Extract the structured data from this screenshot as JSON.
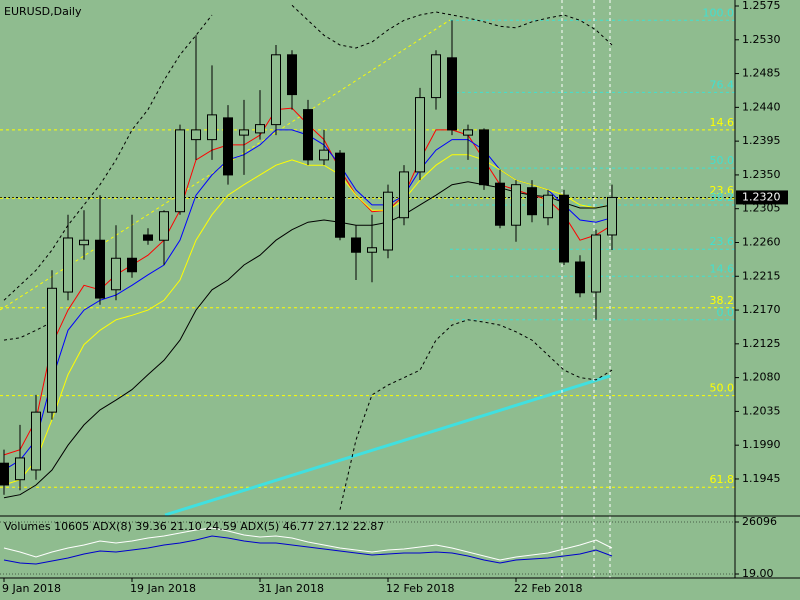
{
  "chart_data": {
    "type": "candlestick",
    "title": "EURUSD,Daily",
    "categories": [
      "9 Jan 2018",
      null,
      null,
      null,
      null,
      null,
      null,
      null,
      "19 Jan 2018",
      null,
      null,
      null,
      null,
      null,
      null,
      null,
      "31 Jan 2018",
      null,
      null,
      null,
      null,
      null,
      null,
      null,
      "12 Feb 2018",
      null,
      null,
      null,
      null,
      null,
      null,
      null,
      "22 Feb 2018",
      null,
      null,
      null,
      null,
      null,
      null
    ],
    "ohlc": {
      "open": [
        1.1966,
        1.1944,
        1.1957,
        1.2034,
        1.2194,
        1.2257,
        1.2263,
        1.2197,
        1.2239,
        1.227,
        1.2263,
        1.2301,
        1.2397,
        1.2397,
        1.2426,
        1.2403,
        1.2406,
        1.2417,
        1.251,
        1.2437,
        1.237,
        1.2379,
        1.2266,
        1.2247,
        1.225,
        1.2293,
        1.2354,
        1.2453,
        1.2506,
        1.2403,
        1.241,
        1.2339,
        1.2283,
        1.2333,
        1.2293,
        1.2323,
        1.2234,
        1.2194,
        1.227
      ],
      "high": [
        1.1984,
        1.2017,
        1.2057,
        1.2223,
        1.2297,
        1.2303,
        1.2323,
        1.2283,
        1.2297,
        1.2279,
        1.2303,
        1.2417,
        1.2536,
        1.2496,
        1.2443,
        1.245,
        1.2463,
        1.2523,
        1.2516,
        1.245,
        1.241,
        1.2383,
        1.2283,
        1.2297,
        1.2337,
        1.2363,
        1.2466,
        1.2516,
        1.2556,
        1.2417,
        1.2412,
        1.2357,
        1.2343,
        1.2343,
        1.233,
        1.233,
        1.2243,
        1.2277,
        1.2337
      ],
      "low": [
        1.1924,
        1.193,
        1.1944,
        1.2024,
        1.2183,
        1.2237,
        1.2177,
        1.2183,
        1.2213,
        1.2257,
        1.223,
        1.2297,
        1.237,
        1.237,
        1.2337,
        1.235,
        1.2397,
        1.2403,
        1.2437,
        1.2363,
        1.2363,
        1.2263,
        1.221,
        1.2207,
        1.2239,
        1.2283,
        1.2343,
        1.2437,
        1.2403,
        1.237,
        1.233,
        1.2279,
        1.2261,
        1.2287,
        1.2283,
        1.223,
        1.2187,
        1.2157,
        1.225
      ],
      "close": [
        1.1937,
        1.1973,
        1.2034,
        1.2199,
        1.2266,
        1.2263,
        1.2186,
        1.2239,
        1.2221,
        1.2263,
        1.2301,
        1.241,
        1.241,
        1.243,
        1.235,
        1.241,
        1.2417,
        1.251,
        1.2457,
        1.237,
        1.2383,
        1.2267,
        1.2247,
        1.2253,
        1.2327,
        1.2354,
        1.2453,
        1.251,
        1.241,
        1.241,
        1.2337,
        1.2283,
        1.2337,
        1.2297,
        1.2323,
        1.2234,
        1.2193,
        1.227,
        1.232
      ]
    },
    "bull_color": "#8fbc8f",
    "bear_color": "#000000",
    "series": [
      {
        "color": "#ff0000",
        "style": "solid",
        "values": [
          1.1977,
          1.1984,
          1.2024,
          1.2124,
          1.217,
          1.2203,
          1.2197,
          1.2217,
          1.223,
          1.2243,
          1.2263,
          1.2303,
          1.237,
          1.2383,
          1.239,
          1.239,
          1.2403,
          1.2437,
          1.2439,
          1.2417,
          1.2397,
          1.2357,
          1.2323,
          1.2301,
          1.2303,
          1.2323,
          1.237,
          1.241,
          1.241,
          1.2403,
          1.237,
          1.2337,
          1.233,
          1.2323,
          1.2317,
          1.2297,
          1.2263,
          1.227,
          1.2283
        ]
      },
      {
        "color": "#0000ff",
        "style": "solid",
        "values": [
          1.1957,
          1.197,
          1.1997,
          1.2077,
          1.2143,
          1.217,
          1.2183,
          1.219,
          1.2203,
          1.2217,
          1.223,
          1.2263,
          1.2323,
          1.235,
          1.237,
          1.2377,
          1.239,
          1.241,
          1.241,
          1.2403,
          1.239,
          1.2363,
          1.233,
          1.231,
          1.231,
          1.2323,
          1.2357,
          1.2383,
          1.2397,
          1.2397,
          1.2383,
          1.2357,
          1.2343,
          1.2337,
          1.233,
          1.231,
          1.229,
          1.2287,
          1.2293
        ]
      },
      {
        "color": "#ffff00",
        "style": "solid",
        "values": [
          1.1937,
          1.1944,
          1.197,
          1.2024,
          1.2084,
          1.2124,
          1.2143,
          1.2157,
          1.2163,
          1.217,
          1.2183,
          1.221,
          1.2263,
          1.2297,
          1.2323,
          1.2337,
          1.235,
          1.2363,
          1.237,
          1.2363,
          1.2363,
          1.235,
          1.2323,
          1.2303,
          1.2303,
          1.2317,
          1.2343,
          1.2363,
          1.2377,
          1.2377,
          1.237,
          1.2357,
          1.2343,
          1.2337,
          1.233,
          1.2323,
          1.231,
          1.2306,
          1.231
        ]
      },
      {
        "color": "#000000",
        "style": "solid",
        "values": [
          1.192,
          1.1924,
          1.1937,
          1.1957,
          1.199,
          1.2017,
          1.2037,
          1.205,
          1.2064,
          1.2084,
          1.2103,
          1.213,
          1.217,
          1.2197,
          1.221,
          1.223,
          1.2243,
          1.2263,
          1.2277,
          1.2287,
          1.229,
          1.2287,
          1.2283,
          1.2283,
          1.2287,
          1.2297,
          1.231,
          1.2323,
          1.2337,
          1.2341,
          1.2337,
          1.2333,
          1.2327,
          1.2323,
          1.2321,
          1.2313,
          1.2306,
          1.2306,
          1.231
        ]
      },
      {
        "color": "#000000",
        "style": "dashed",
        "values": [
          1.2183,
          1.2203,
          1.2223,
          1.225,
          1.2283,
          1.231,
          1.2337,
          1.237,
          1.241,
          1.2437,
          1.2476,
          1.251,
          1.2536,
          1.2563,
          null,
          null,
          null,
          null,
          1.2576,
          1.2556,
          1.2536,
          1.2523,
          1.2519,
          1.2527,
          1.2543,
          1.2556,
          1.2563,
          1.2567,
          1.2563,
          1.2559,
          1.2554,
          1.2548,
          1.2546,
          1.2554,
          1.2559,
          1.2563,
          1.2556,
          1.2543,
          1.2523
        ]
      },
      {
        "color": "#000000",
        "style": "dashed",
        "values": [
          1.213,
          1.2133,
          1.2143,
          1.2154,
          null,
          null,
          null,
          null,
          null,
          null,
          null,
          null,
          null,
          null,
          null,
          null,
          null,
          null,
          null,
          null,
          null,
          1.1904,
          1.1997,
          1.2057,
          1.207,
          1.208,
          1.209,
          1.213,
          1.215,
          1.2157,
          1.2154,
          1.215,
          1.2141,
          1.213,
          1.211,
          1.209,
          1.208,
          1.2077,
          1.209
        ]
      }
    ],
    "ylim": [
      1.1897,
      1.2583
    ],
    "yticks": [
      1.2575,
      {
        "value": 1.253,
        "label": "1.2530"
      },
      1.2485,
      {
        "value": 1.244,
        "label": "1.2440"
      },
      1.2395,
      {
        "value": 1.235,
        "label": "1.2350"
      },
      1.2305,
      {
        "value": 1.226,
        "label": "1.2260"
      },
      1.2215,
      {
        "value": 1.217,
        "label": "1.2170"
      },
      1.2125,
      {
        "value": 1.208,
        "label": "1.2080"
      },
      1.2035,
      {
        "value": 1.199,
        "label": "1.1990"
      },
      1.1945
    ],
    "current_price": {
      "value": 1.232,
      "label": "1.2320"
    },
    "fib_sets": [
      {
        "color": "#ffff00",
        "levels": [
          {
            "label": "14.6",
            "value": 1.241
          },
          {
            "label": "23.6",
            "value": 1.2319
          },
          {
            "label": "38.2",
            "value": 1.2173
          },
          {
            "label": "50.0",
            "value": 1.2056
          },
          {
            "label": "61.8",
            "value": 1.1934
          }
        ]
      },
      {
        "color": "#40e0d0",
        "levels": [
          {
            "label": "100.0",
            "value": 1.2556
          },
          {
            "label": "76.4",
            "value": 1.246
          },
          {
            "label": "50.0",
            "value": 1.2359
          },
          {
            "label": "38.2",
            "value": 1.231
          },
          {
            "label": "23.6",
            "value": 1.2251
          },
          {
            "label": "14.6",
            "value": 1.2215
          },
          {
            "label": "0.0",
            "value": 1.2157
          }
        ]
      }
    ],
    "lower_pane": {
      "label": "Volumes 10605 ADX(8) 39.36 21.10 24.59 ADX(5) 46.77 27.12 22.87",
      "ylim": [
        -1987,
        28603
      ],
      "yticks": [
        26096,
        {
          "value": 19,
          "label": "19.00"
        }
      ],
      "series": [
        {
          "color": "#ffffff",
          "values": [
            13058,
            11052,
            8545,
            11052,
            13058,
            14563,
            16569,
            15566,
            16569,
            18073,
            19076,
            20581,
            22085,
            23088,
            21584,
            19578,
            18575,
            19076,
            18073,
            16067,
            14563,
            13058,
            12055,
            11052,
            12055,
            12557,
            13560,
            14563,
            13058,
            11052,
            9046,
            7040,
            8545,
            9548,
            10551,
            12557,
            14563,
            17070,
            13058
          ]
        },
        {
          "color": "#0000cc",
          "values": [
            7040,
            5536,
            5034,
            6539,
            8043,
            10049,
            11554,
            11052,
            12055,
            13058,
            14563,
            15566,
            17070,
            19076,
            18073,
            16569,
            15566,
            15566,
            14563,
            13560,
            12557,
            11554,
            10551,
            9548,
            10049,
            10551,
            10551,
            11052,
            10551,
            9046,
            7040,
            5536,
            7040,
            7541,
            8043,
            9046,
            10049,
            12055,
            9046
          ]
        }
      ]
    }
  }
}
